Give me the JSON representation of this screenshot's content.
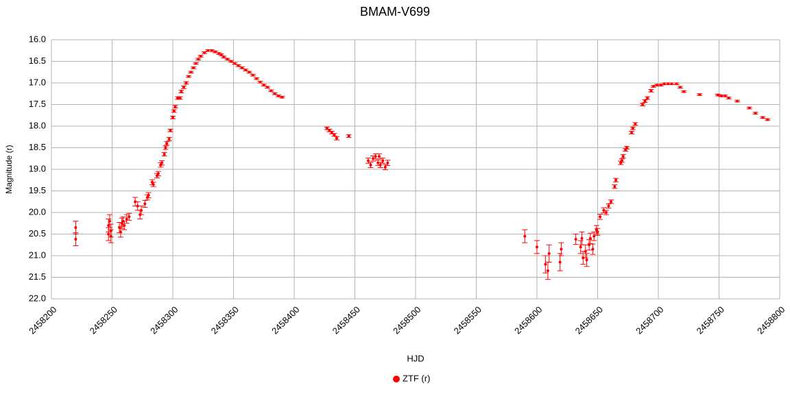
{
  "chart_data": {
    "type": "scatter",
    "title": "BMAM-V699",
    "x_label": "HJD",
    "y_label": "Magnitude (r)",
    "xlim": [
      2458200,
      2458800
    ],
    "xticks": [
      2458200,
      2458250,
      2458300,
      2458350,
      2458400,
      2458450,
      2458500,
      2458550,
      2458600,
      2458650,
      2458700,
      2458750,
      2458800
    ],
    "ylim": [
      16,
      22
    ],
    "y_inverted": true,
    "yticks": [
      {
        "value": 16,
        "label": "16.0"
      },
      16.5,
      {
        "value": 17,
        "label": "17.0"
      },
      17.5,
      {
        "value": 18,
        "label": "18.0"
      },
      18.5,
      {
        "value": 19,
        "label": "19.0"
      },
      19.5,
      {
        "value": 20,
        "label": "20.0"
      },
      20.5,
      {
        "value": 21,
        "label": "21.0"
      },
      21.5,
      {
        "value": 22,
        "label": "22.0"
      }
    ],
    "grid": true,
    "legend": "bottom",
    "series": [
      {
        "name": "ZTF (r)",
        "color": "#ff0000",
        "x": [
          2458220,
          2458220,
          2458247,
          2458247,
          2458248,
          2458249,
          2458249,
          2458256,
          2458257,
          2458258,
          2458259,
          2458260,
          2458262,
          2458264,
          2458269,
          2458271,
          2458273,
          2458274,
          2458277,
          2458279,
          2458280,
          2458283,
          2458284,
          2458287,
          2458288,
          2458290,
          2458291,
          2458293,
          2458294,
          2458295,
          2458297,
          2458298,
          2458300,
          2458301,
          2458302,
          2458304,
          2458306,
          2458307,
          2458309,
          2458311,
          2458313,
          2458315,
          2458317,
          2458319,
          2458321,
          2458323,
          2458326,
          2458329,
          2458332,
          2458335,
          2458338,
          2458340,
          2458342,
          2458345,
          2458348,
          2458351,
          2458354,
          2458357,
          2458360,
          2458363,
          2458366,
          2458369,
          2458372,
          2458375,
          2458378,
          2458381,
          2458384,
          2458387,
          2458390,
          2458427,
          2458429,
          2458431,
          2458433,
          2458435,
          2458445,
          2458461,
          2458463,
          2458465,
          2458467,
          2458469,
          2458470,
          2458471,
          2458473,
          2458475,
          2458477,
          2458590,
          2458600,
          2458607,
          2458609,
          2458610,
          2458619,
          2458620,
          2458632,
          2458636,
          2458637,
          2458638,
          2458640,
          2458641,
          2458643,
          2458644,
          2458646,
          2458647,
          2458649,
          2458650,
          2458652,
          2458655,
          2458657,
          2458659,
          2458661,
          2458664,
          2458665,
          2458669,
          2458670,
          2458671,
          2458673,
          2458674,
          2458678,
          2458679,
          2458681,
          2458687,
          2458689,
          2458691,
          2458694,
          2458696,
          2458699,
          2458702,
          2458705,
          2458708,
          2458711,
          2458715,
          2458718,
          2458721,
          2458734,
          2458749,
          2458752,
          2458755,
          2458758,
          2458765,
          2458775,
          2458780,
          2458786,
          2458790
        ],
        "values": [
          20.35,
          20.62,
          20.5,
          20.3,
          20.2,
          20.42,
          20.55,
          20.35,
          20.45,
          20.25,
          20.2,
          20.3,
          20.15,
          20.1,
          19.75,
          19.85,
          20.05,
          19.95,
          19.8,
          19.65,
          19.6,
          19.3,
          19.35,
          19.15,
          19.1,
          18.9,
          18.85,
          18.65,
          18.5,
          18.4,
          18.3,
          18.1,
          17.8,
          17.65,
          17.55,
          17.35,
          17.35,
          17.2,
          17.1,
          17.0,
          16.85,
          16.75,
          16.65,
          16.55,
          16.45,
          16.38,
          16.3,
          16.25,
          16.25,
          16.28,
          16.32,
          16.35,
          16.4,
          16.45,
          16.5,
          16.55,
          16.6,
          16.65,
          16.7,
          16.75,
          16.82,
          16.9,
          16.98,
          17.05,
          17.1,
          17.18,
          17.25,
          17.3,
          17.33,
          18.05,
          18.1,
          18.15,
          18.2,
          18.28,
          18.23,
          18.8,
          18.9,
          18.75,
          18.7,
          18.85,
          18.7,
          18.9,
          18.8,
          18.95,
          18.85,
          20.55,
          20.8,
          21.2,
          21.35,
          20.95,
          21.15,
          20.85,
          20.62,
          20.8,
          20.6,
          21.05,
          20.9,
          21.1,
          20.75,
          20.6,
          20.85,
          20.55,
          20.4,
          20.45,
          20.1,
          19.95,
          20.0,
          19.85,
          19.75,
          19.4,
          19.25,
          18.85,
          18.8,
          18.7,
          18.55,
          18.5,
          18.15,
          18.05,
          17.95,
          17.5,
          17.42,
          17.35,
          17.18,
          17.08,
          17.05,
          17.05,
          17.02,
          17.02,
          17.02,
          17.02,
          17.1,
          17.2,
          17.27,
          17.28,
          17.3,
          17.3,
          17.35,
          17.42,
          17.58,
          17.7,
          17.8,
          17.85
        ],
        "errors": [
          0.15,
          0.15,
          0.15,
          0.15,
          0.15,
          0.15,
          0.15,
          0.12,
          0.12,
          0.12,
          0.1,
          0.1,
          0.1,
          0.08,
          0.1,
          0.1,
          0.1,
          0.1,
          0.08,
          0.06,
          0.06,
          0.06,
          0.05,
          0.05,
          0.05,
          0.05,
          0.05,
          0.04,
          0.04,
          0.04,
          0.04,
          0.03,
          0.03,
          0.03,
          0.03,
          0.03,
          0.03,
          0.03,
          0.03,
          0.03,
          0.02,
          0.02,
          0.02,
          0.02,
          0.02,
          0.02,
          0.02,
          0.02,
          0.02,
          0.02,
          0.02,
          0.02,
          0.02,
          0.02,
          0.02,
          0.02,
          0.02,
          0.02,
          0.02,
          0.02,
          0.02,
          0.02,
          0.02,
          0.02,
          0.02,
          0.02,
          0.02,
          0.02,
          0.02,
          0.03,
          0.03,
          0.03,
          0.03,
          0.04,
          0.03,
          0.06,
          0.06,
          0.06,
          0.06,
          0.06,
          0.06,
          0.06,
          0.06,
          0.06,
          0.06,
          0.15,
          0.15,
          0.2,
          0.2,
          0.2,
          0.2,
          0.15,
          0.12,
          0.15,
          0.15,
          0.15,
          0.15,
          0.15,
          0.12,
          0.12,
          0.12,
          0.1,
          0.1,
          0.08,
          0.06,
          0.06,
          0.05,
          0.05,
          0.04,
          0.04,
          0.04,
          0.04,
          0.04,
          0.04,
          0.03,
          0.03,
          0.03,
          0.03,
          0.03,
          0.03,
          0.03,
          0.03,
          0.03,
          0.02,
          0.02,
          0.02,
          0.02,
          0.02,
          0.02,
          0.02,
          0.02,
          0.02,
          0.02,
          0.02,
          0.02,
          0.02,
          0.02,
          0.02,
          0.02,
          0.02,
          0.02,
          0.02
        ]
      }
    ]
  }
}
